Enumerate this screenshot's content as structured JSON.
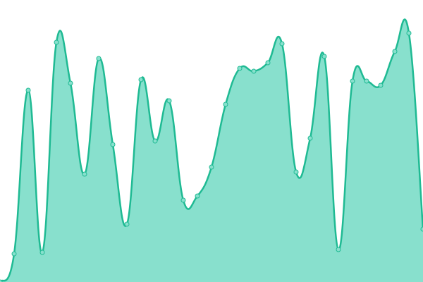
{
  "chart_data": {
    "type": "area",
    "categories": [
      null,
      null,
      null,
      null,
      null,
      null,
      null,
      null,
      null,
      null,
      null,
      null,
      null,
      null,
      null,
      null,
      null,
      null,
      null,
      null,
      null,
      null,
      null,
      null,
      null,
      null,
      null,
      null,
      null,
      null,
      null
    ],
    "values": [
      0,
      40,
      272,
      42,
      340,
      282,
      153,
      317,
      195,
      82,
      287,
      200,
      257,
      116,
      122,
      163,
      252,
      303,
      299,
      311,
      338,
      156,
      204,
      320,
      46,
      285,
      285,
      279,
      327,
      353,
      75
    ],
    "color": "#1fba93",
    "fill": "#88e0cd",
    "ylim": [
      0,
      400
    ]
  }
}
